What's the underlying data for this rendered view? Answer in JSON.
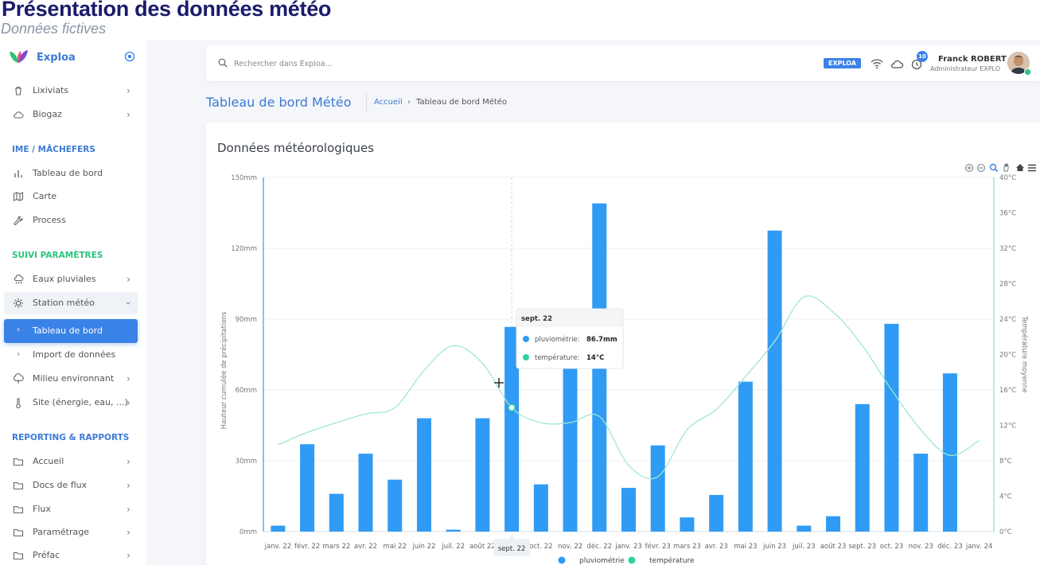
{
  "header": {
    "title": "Présentation des données météo",
    "subtitle": "Données fictives"
  },
  "sidebar": {
    "brand": "Exploa",
    "items": [
      {
        "label": "Lixiviats",
        "icon": "trash-icon"
      },
      {
        "label": "Biogaz",
        "icon": "cloud-icon"
      }
    ],
    "section1": "IME / MÂCHEFERS",
    "items2": [
      {
        "label": "Tableau de bord",
        "icon": "bar-chart-icon"
      },
      {
        "label": "Carte",
        "icon": "map-icon"
      },
      {
        "label": "Process",
        "icon": "wrench-icon"
      }
    ],
    "section2": "SUIVI PARAMÈTRES",
    "items3": [
      {
        "label": "Eaux pluviales",
        "icon": "rain-cloud-icon"
      },
      {
        "label": "Station météo",
        "icon": "sun-icon"
      },
      {
        "label": "Tableau de bord"
      },
      {
        "label": "Import de données"
      },
      {
        "label": "Milieu environnant",
        "icon": "tree-icon"
      },
      {
        "label": "Site (énergie, eau, ...)",
        "icon": "thermometer-icon"
      }
    ],
    "section3": "REPORTING & RAPPORTS",
    "items4": [
      {
        "label": "Accueil",
        "icon": "folder-icon"
      },
      {
        "label": "Docs de flux",
        "icon": "folder-icon"
      },
      {
        "label": "Flux",
        "icon": "folder-icon"
      },
      {
        "label": "Paramétrage",
        "icon": "folder-icon"
      },
      {
        "label": "Préfac",
        "icon": "folder-icon"
      }
    ]
  },
  "topbar": {
    "search_placeholder": "Rechercher dans Exploa...",
    "tag": "EXPLOA",
    "notifications": "10",
    "user_name": "Franck ROBERT",
    "user_role": "Administrateur EXPLOA"
  },
  "page": {
    "title": "Tableau de bord Météo",
    "breadcrumb_home": "Accueil",
    "breadcrumb_sep": "›",
    "breadcrumb_current": "Tableau de bord Météo"
  },
  "card": {
    "title": "Données météorologiques"
  },
  "colors": {
    "accent": "#3b82e6",
    "bars": "#2f9bf5",
    "temperature": "#9fe7d4",
    "temperature_marker": "#2ed3a0"
  },
  "chart_data": {
    "type": "bar",
    "categories": [
      "janv. 22",
      "févr. 22",
      "mars 22",
      "avr. 22",
      "mai 22",
      "juin 22",
      "juil. 22",
      "août 22",
      "sept. 22",
      "oct. 22",
      "nov. 22",
      "déc. 22",
      "janv. 23",
      "févr. 23",
      "mars 23",
      "avr. 23",
      "mai 23",
      "juin 23",
      "juil. 23",
      "août 23",
      "sept. 23",
      "oct. 23",
      "nov. 23",
      "déc. 23",
      "janv. 24"
    ],
    "series": [
      {
        "name": "pluviométrie",
        "type": "bar",
        "axis": "left",
        "values": [
          2.5,
          37,
          16,
          33,
          22,
          48,
          0.8,
          48,
          86.7,
          20,
          72,
          139,
          18.5,
          36.5,
          6,
          15.5,
          63.5,
          127.5,
          2.5,
          6.5,
          54,
          88,
          33,
          67,
          null
        ]
      },
      {
        "name": "température",
        "type": "line",
        "axis": "right",
        "values": [
          9.8,
          11.2,
          12.3,
          13.3,
          14,
          18.2,
          21,
          19,
          14,
          12.3,
          12.3,
          13,
          7.5,
          6.2,
          11.5,
          13.8,
          17.5,
          21.5,
          26.5,
          24.8,
          21,
          16,
          11.5,
          8.6,
          10.3
        ]
      }
    ],
    "ylabel": "Hauteur cumulée de précipitations",
    "ylabel_right": "Température moyenne",
    "ylim": [
      0,
      150
    ],
    "ylim_right": [
      0,
      40
    ],
    "yticks": [
      "0mm",
      "30mm",
      "60mm",
      "90mm",
      "120mm",
      "150mm"
    ],
    "yticks_right": [
      "0°C",
      "4°C",
      "8°C",
      "12°C",
      "16°C",
      "20°C",
      "24°C",
      "28°C",
      "32°C",
      "36°C",
      "40°C"
    ],
    "legend": [
      "pluviométrie",
      "température"
    ],
    "legend_position": "bottom",
    "grid": true,
    "tooltip": {
      "title": "sept. 22",
      "rows": [
        {
          "label": "pluviométrie:",
          "value": "86.7mm"
        },
        {
          "label": "température:",
          "value": "14°C"
        }
      ]
    },
    "crosshair_label": "sept. 22"
  }
}
